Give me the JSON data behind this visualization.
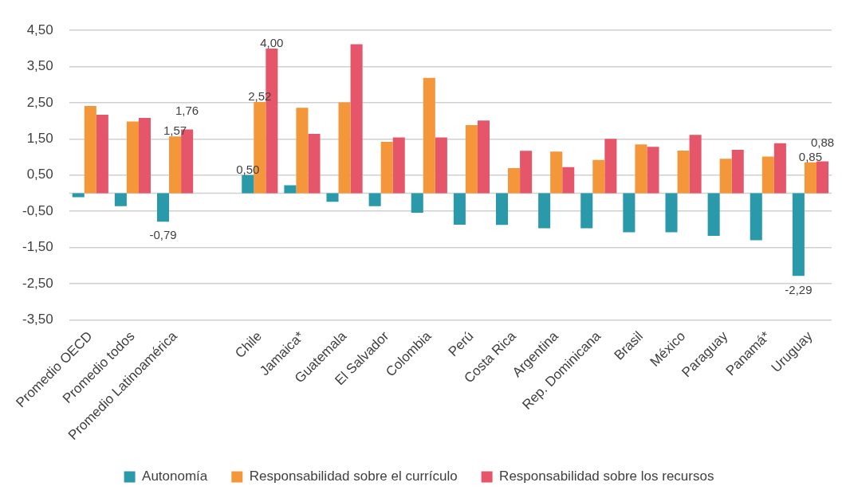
{
  "chart_data": {
    "type": "bar",
    "categories": [
      "Promedio OECD",
      "Promedio todos",
      "Promedio Latinoamérica",
      null,
      "Chile",
      "Jamaica*",
      "Guatemala",
      "El Salvador",
      "Colombia",
      "Perú",
      "Costa Rica",
      "Argentina",
      "Rep. Dominicana",
      "Brasil",
      "México",
      "Paraguay",
      "Panamá*",
      "Uruguay"
    ],
    "series": [
      {
        "name": "Autonomía",
        "color": "#2a9aaa",
        "values": [
          -0.11,
          -0.36,
          -0.79,
          null,
          0.5,
          0.22,
          -0.24,
          -0.36,
          -0.54,
          -0.87,
          -0.88,
          -0.97,
          -0.97,
          -1.08,
          -1.08,
          -1.18,
          -1.3,
          -2.29
        ],
        "value_labels": [
          null,
          null,
          "-0,79",
          null,
          "0,50",
          null,
          null,
          null,
          null,
          null,
          null,
          null,
          null,
          null,
          null,
          null,
          null,
          "-2,29"
        ]
      },
      {
        "name": "Responsabilidad sobre el currículo",
        "color": "#f4963a",
        "values": [
          2.41,
          1.98,
          1.57,
          null,
          2.52,
          2.36,
          2.51,
          1.42,
          3.19,
          1.88,
          0.69,
          1.15,
          0.92,
          1.35,
          1.18,
          0.95,
          1.01,
          0.85
        ],
        "value_labels": [
          null,
          null,
          "1,57",
          null,
          "2,52",
          null,
          null,
          null,
          null,
          null,
          null,
          null,
          null,
          null,
          null,
          null,
          null,
          "0,85"
        ]
      },
      {
        "name": "Responsabilidad sobre los recursos",
        "color": "#e5566a",
        "values": [
          2.17,
          2.08,
          1.76,
          null,
          4.0,
          1.64,
          4.12,
          1.54,
          1.54,
          2.01,
          1.17,
          0.72,
          1.5,
          1.28,
          1.61,
          1.2,
          1.38,
          0.88
        ],
        "value_labels": [
          null,
          null,
          "1,76",
          null,
          "4,00",
          null,
          null,
          null,
          null,
          null,
          null,
          null,
          null,
          null,
          null,
          null,
          null,
          "0,88"
        ]
      }
    ],
    "ylim": [
      -3.5,
      4.5
    ],
    "yticks": [
      {
        "value": -3.5,
        "label": "-3,50"
      },
      {
        "value": -2.5,
        "label": "-2,50"
      },
      {
        "value": -1.5,
        "label": "-1,50"
      },
      {
        "value": -0.5,
        "label": "-0,50"
      },
      {
        "value": 0.5,
        "label": "0,50"
      },
      {
        "value": 1.5,
        "label": "1,50"
      },
      {
        "value": 2.5,
        "label": "2,50"
      },
      {
        "value": 3.5,
        "label": "3,50"
      },
      {
        "value": 4.5,
        "label": "4,50"
      }
    ],
    "grid": "y",
    "legend": "bottom"
  }
}
